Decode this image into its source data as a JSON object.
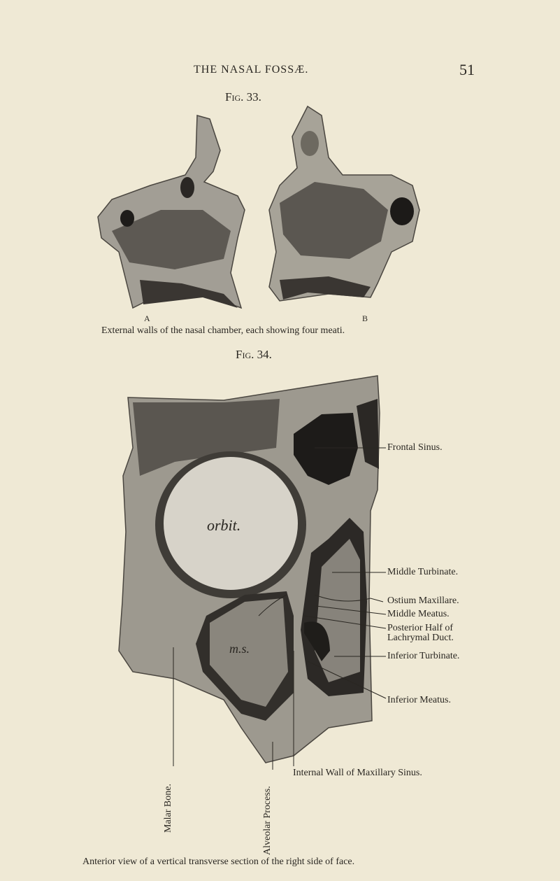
{
  "header": {
    "title": "THE NASAL FOSSÆ.",
    "page_number": "51"
  },
  "figures": [
    {
      "label": "Fig. 33.",
      "parts": [
        "A",
        "B"
      ],
      "caption": "External walls of the nasal chamber, each showing four meati."
    },
    {
      "label": "Fig. 34.",
      "annotations": [
        "orbit.",
        "m.s."
      ],
      "labels": [
        "Frontal Sinus.",
        "Middle Turbinate.",
        "Ostium Maxillare.",
        "Middle Meatus.",
        "Posterior Half of",
        "Lachrymal Duct.",
        "Inferior Turbinate.",
        "Inferior Meatus.",
        "Internal Wall of Maxillary Sinus.",
        "Malar Bone.",
        "Alveolar Process."
      ],
      "caption": "Anterior view of a vertical transverse section of the right side of face."
    }
  ]
}
